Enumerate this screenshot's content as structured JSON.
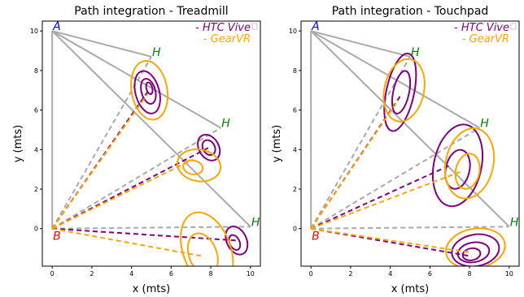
{
  "colors": {
    "htc": "#800080",
    "gear": "#FFA500",
    "path": "#A9A9A9",
    "point_A": "#0000FF",
    "point_B": "#FF0000",
    "point_H": "#008000"
  },
  "chart_data": [
    {
      "type": "line",
      "title": "Path integration - Treadmill",
      "xlabel": "x (mts)",
      "ylabel": "y (mts)",
      "xlim": [
        -0.5,
        10.5
      ],
      "ylim": [
        -1.9,
        10.5
      ],
      "xticks": [
        "0",
        "2",
        "4",
        "6",
        "8",
        "10"
      ],
      "yticks": [
        "0",
        "2",
        "4",
        "6",
        "8",
        "10"
      ],
      "legend": {
        "position": "top-right",
        "entries": [
          "- HTC Vive",
          "- GearVR"
        ]
      },
      "point_labels": {
        "A": "A",
        "B": "B",
        "H": "H"
      },
      "points": {
        "A": [
          0,
          10
        ],
        "B": [
          0,
          0
        ],
        "H": [
          [
            5,
            8.7
          ],
          [
            8.5,
            5.1
          ],
          [
            10,
            0.1
          ]
        ]
      },
      "series": [
        {
          "name": "HTC Vive",
          "endpoints": [
            [
              4.8,
              6.9
            ],
            [
              7.9,
              4.1
            ],
            [
              9.3,
              -0.6
            ]
          ],
          "ellipses": [
            [
              [
                4.8,
                6.9,
                0.6,
                1.1,
                -15
              ],
              [
                4.85,
                6.95,
                0.35,
                0.65,
                -15
              ],
              [
                4.9,
                7.1,
                0.15,
                0.3,
                -15
              ]
            ],
            [
              [
                7.9,
                4.1,
                0.5,
                0.7,
                -30
              ],
              [
                7.9,
                4.1,
                0.3,
                0.4,
                -30
              ]
            ],
            [
              [
                9.3,
                -0.6,
                0.5,
                0.75,
                -25
              ],
              [
                9.2,
                -0.7,
                0.25,
                0.4,
                -25
              ]
            ]
          ]
        },
        {
          "name": "GearVR",
          "endpoints": [
            [
              4.8,
              6.8
            ],
            [
              7.1,
              3.5
            ],
            [
              7.6,
              -1.4
            ]
          ],
          "ellipses": [
            [
              [
                4.9,
                7.0,
                0.9,
                1.5,
                -10
              ]
            ],
            [
              [
                7.4,
                3.2,
                1.1,
                0.8,
                10
              ],
              [
                7.1,
                3.1,
                0.5,
                0.35,
                10
              ]
            ],
            [
              [
                7.8,
                -1.1,
                1.2,
                2.0,
                -20
              ],
              [
                7.6,
                -1.3,
                0.7,
                1.1,
                -20
              ]
            ]
          ]
        }
      ]
    },
    {
      "type": "line",
      "title": "Path integration - Touchpad",
      "xlabel": "x (mts)",
      "ylabel": "y (mts)",
      "xlim": [
        -0.5,
        10.5
      ],
      "ylim": [
        -1.9,
        10.5
      ],
      "xticks": [
        "0",
        "2",
        "4",
        "6",
        "8",
        "10"
      ],
      "yticks": [
        "0",
        "2",
        "4",
        "6",
        "8",
        "10"
      ],
      "legend": {
        "position": "top-right",
        "entries": [
          "- HTC Vive",
          "- GearVR"
        ]
      },
      "point_labels": {
        "A": "A",
        "B": "B",
        "H": "H"
      },
      "points": {
        "A": [
          0,
          10
        ],
        "B": [
          0,
          0
        ],
        "H": [
          [
            5,
            8.7
          ],
          [
            8.5,
            5.1
          ],
          [
            10,
            0.1
          ]
        ]
      },
      "series": [
        {
          "name": "HTC Vive",
          "endpoints": [
            [
              4.5,
              6.7
            ],
            [
              7.0,
              3.2
            ],
            [
              8.1,
              -1.4
            ]
          ],
          "ellipses": [
            [
              [
                4.5,
                6.9,
                0.7,
                2.0,
                12
              ],
              [
                4.55,
                6.9,
                0.4,
                1.1,
                12
              ]
            ],
            [
              [
                7.4,
                3.2,
                1.2,
                2.1,
                12
              ],
              [
                7.4,
                3.0,
                0.6,
                1.0,
                12
              ]
            ],
            [
              [
                8.3,
                -1.1,
                1.2,
                0.8,
                -10
              ],
              [
                8.2,
                -1.2,
                0.8,
                0.5,
                -10
              ],
              [
                8.1,
                -1.3,
                0.45,
                0.3,
                -10
              ]
            ]
          ]
        },
        {
          "name": "GearVR",
          "endpoints": [
            [
              4.4,
              6.5
            ],
            [
              7.6,
              2.9
            ],
            [
              8.0,
              -1.2
            ]
          ],
          "ellipses": [
            [
              [
                4.7,
                7.0,
                1.0,
                1.6,
                12
              ]
            ],
            [
              [
                8.0,
                3.3,
                1.2,
                1.8,
                12
              ],
              [
                7.9,
                2.9,
                0.6,
                0.9,
                12
              ]
            ],
            [
              [
                8.3,
                -1.0,
                1.5,
                1.0,
                -10
              ]
            ]
          ]
        }
      ]
    }
  ]
}
